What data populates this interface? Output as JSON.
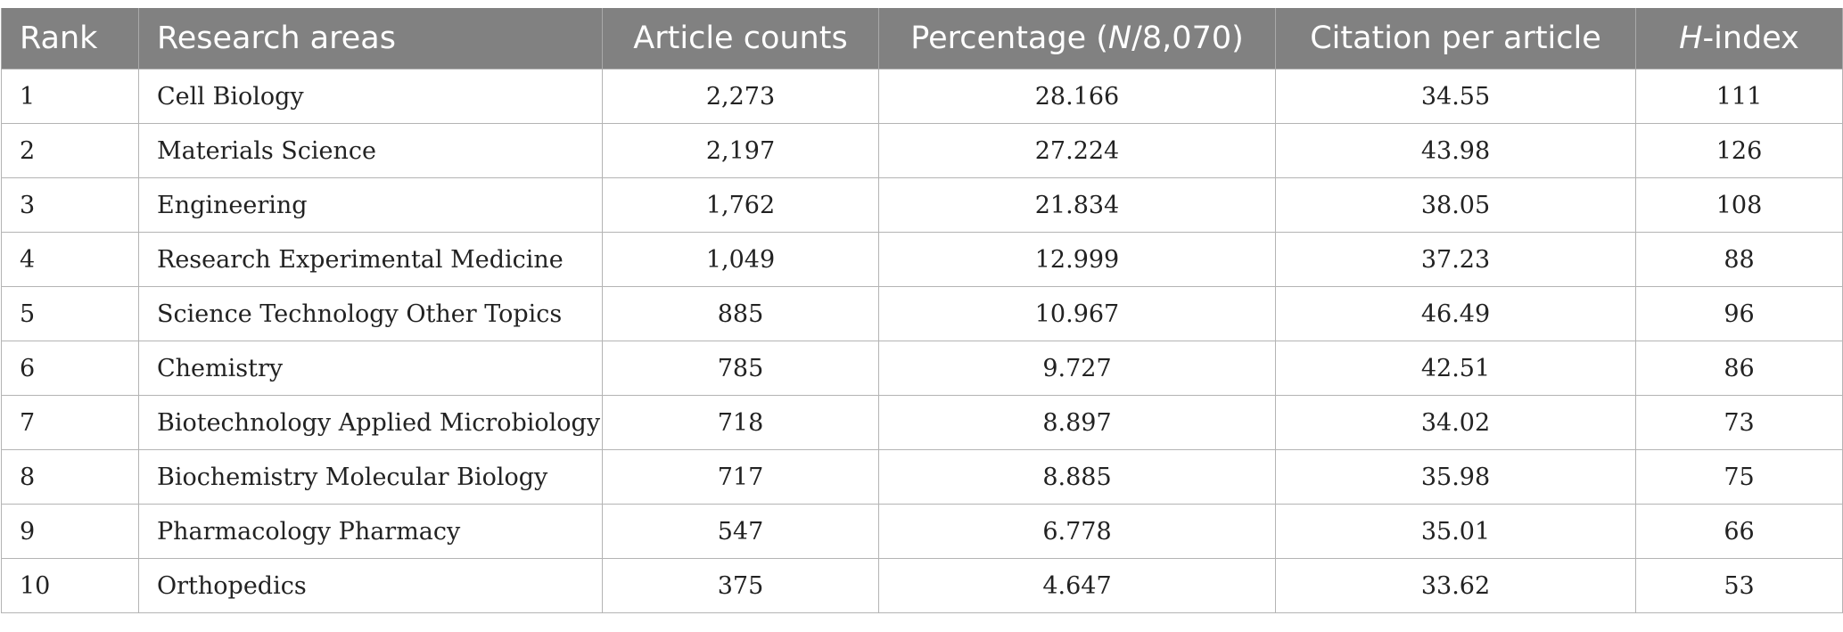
{
  "table": {
    "headers": {
      "rank": "Rank",
      "area": "Research areas",
      "counts": "Article counts",
      "pct_prefix": "Percentage (",
      "pct_italic": "N",
      "pct_suffix": "/8,070)",
      "cpa": "Citation per article",
      "h_italic": "H",
      "h_suffix": "-index"
    },
    "rows": [
      {
        "rank": "1",
        "area": "Cell Biology",
        "counts": "2,273",
        "pct": "28.166",
        "cpa": "34.55",
        "h": "111"
      },
      {
        "rank": "2",
        "area": "Materials Science",
        "counts": "2,197",
        "pct": "27.224",
        "cpa": "43.98",
        "h": "126"
      },
      {
        "rank": "3",
        "area": "Engineering",
        "counts": "1,762",
        "pct": "21.834",
        "cpa": "38.05",
        "h": "108"
      },
      {
        "rank": "4",
        "area": "Research Experimental Medicine",
        "counts": "1,049",
        "pct": "12.999",
        "cpa": "37.23",
        "h": "88"
      },
      {
        "rank": "5",
        "area": "Science Technology Other Topics",
        "counts": "885",
        "pct": "10.967",
        "cpa": "46.49",
        "h": "96"
      },
      {
        "rank": "6",
        "area": "Chemistry",
        "counts": "785",
        "pct": "9.727",
        "cpa": "42.51",
        "h": "86"
      },
      {
        "rank": "7",
        "area": "Biotechnology Applied Microbiology",
        "counts": "718",
        "pct": "8.897",
        "cpa": "34.02",
        "h": "73"
      },
      {
        "rank": "8",
        "area": "Biochemistry Molecular Biology",
        "counts": "717",
        "pct": "8.885",
        "cpa": "35.98",
        "h": "75"
      },
      {
        "rank": "9",
        "area": "Pharmacology Pharmacy",
        "counts": "547",
        "pct": "6.778",
        "cpa": "35.01",
        "h": "66"
      },
      {
        "rank": "10",
        "area": "Orthopedics",
        "counts": "375",
        "pct": "4.647",
        "cpa": "33.62",
        "h": "53"
      }
    ]
  }
}
